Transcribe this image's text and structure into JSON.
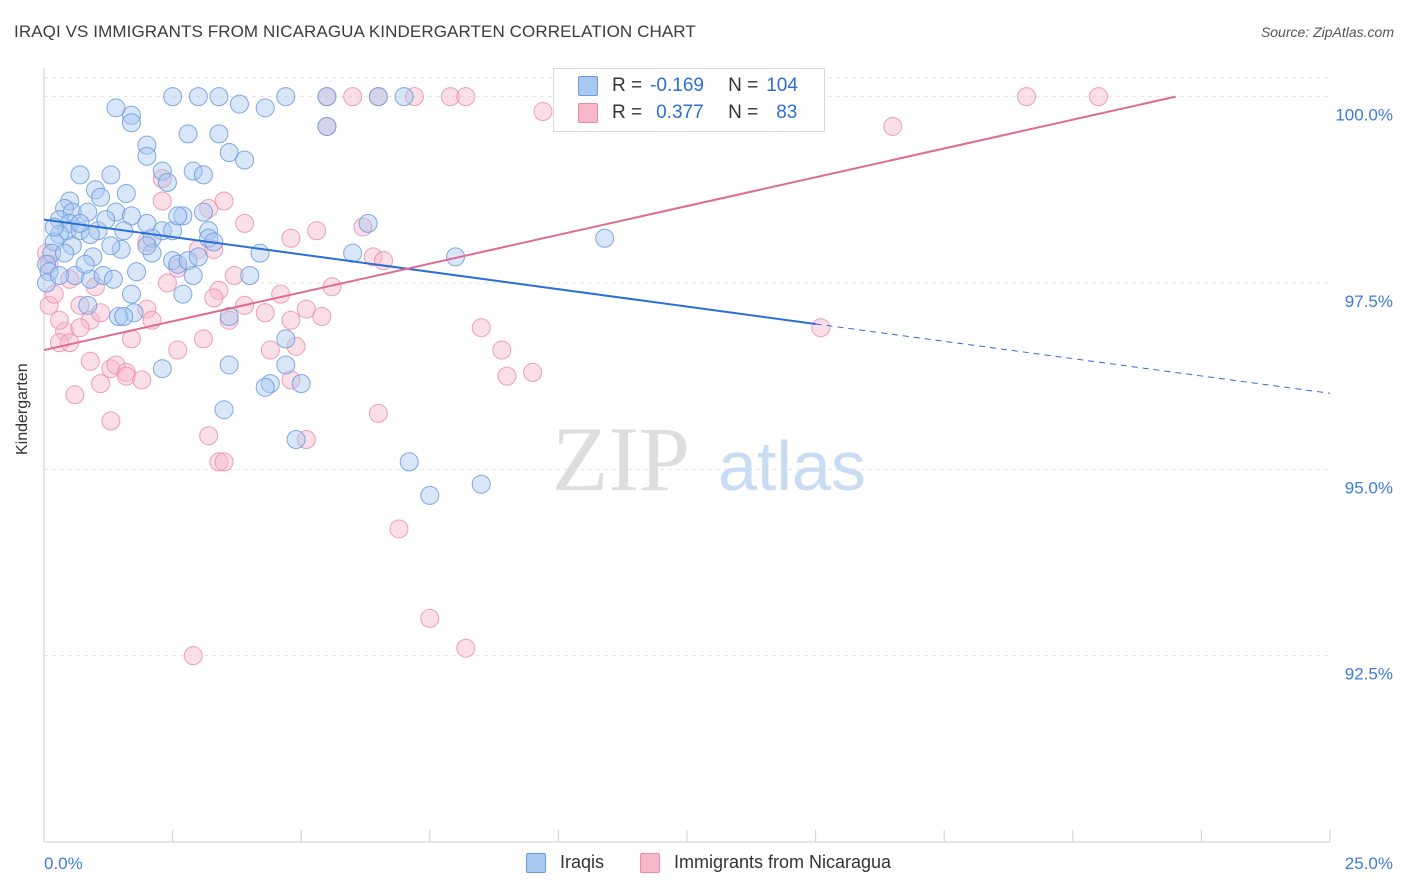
{
  "header": {
    "title": "IRAQI VS IMMIGRANTS FROM NICARAGUA KINDERGARTEN CORRELATION CHART",
    "source": "Source: ZipAtlas.com"
  },
  "legend": {
    "rows": [
      {
        "r_label": "R =",
        "r_value": "-0.169",
        "n_label": "N =",
        "n_value": "104"
      },
      {
        "r_label": "R =",
        "r_value": "0.377",
        "n_label": "N =",
        "n_value": "83"
      }
    ]
  },
  "bottom_legend": {
    "items": [
      {
        "label": "Iraqis"
      },
      {
        "label": "Immigrants from Nicaragua"
      }
    ]
  },
  "watermark": {
    "zip": "ZIP",
    "atlas": "atlas"
  },
  "colors": {
    "blue_fill": "#a9c8f0",
    "blue_stroke": "#6a9be0",
    "blue_line": "#2b6fd6",
    "pink_fill": "#f7b8cc",
    "pink_stroke": "#e98aa8",
    "pink_line": "#e06a94",
    "axis_text": "#3d7ad9",
    "grid": "#e4e4e4"
  },
  "chart_data": {
    "type": "scatter",
    "title": "IRAQI VS IMMIGRANTS FROM NICARAGUA KINDERGARTEN CORRELATION CHART",
    "xlabel": "",
    "ylabel": "Kindergarten",
    "xlim": [
      0,
      25
    ],
    "ylim": [
      90,
      100.25
    ],
    "x_tick_labels": [
      "0.0%",
      "25.0%"
    ],
    "y_ticks": [
      92.5,
      95.0,
      97.5,
      100.0
    ],
    "y_tick_labels": [
      "92.5%",
      "95.0%",
      "97.5%",
      "100.0%"
    ],
    "grid": true,
    "legend_position": "top-center",
    "series": [
      {
        "name": "Iraqis",
        "color": "#a9c8f0",
        "trend": {
          "x": [
            0.0,
            15.0
          ],
          "y": [
            98.35,
            96.95
          ],
          "dashed_to": [
            25.0,
            96.02
          ]
        },
        "points": [
          [
            2.5,
            100.0
          ],
          [
            3.0,
            100.0
          ],
          [
            3.4,
            100.0
          ],
          [
            3.8,
            99.9
          ],
          [
            4.3,
            99.85
          ],
          [
            4.7,
            100.0
          ],
          [
            5.5,
            100.0
          ],
          [
            5.5,
            99.6
          ],
          [
            6.5,
            100.0
          ],
          [
            7.0,
            100.0
          ],
          [
            1.4,
            99.85
          ],
          [
            1.7,
            99.75
          ],
          [
            1.7,
            99.65
          ],
          [
            2.0,
            99.35
          ],
          [
            2.8,
            99.5
          ],
          [
            3.4,
            99.5
          ],
          [
            2.0,
            99.2
          ],
          [
            3.6,
            99.25
          ],
          [
            3.9,
            99.15
          ],
          [
            2.3,
            99.0
          ],
          [
            2.4,
            98.85
          ],
          [
            2.9,
            99.0
          ],
          [
            3.1,
            98.95
          ],
          [
            0.7,
            98.95
          ],
          [
            1.3,
            98.95
          ],
          [
            1.0,
            98.75
          ],
          [
            1.6,
            98.7
          ],
          [
            1.1,
            98.65
          ],
          [
            0.5,
            98.6
          ],
          [
            0.4,
            98.5
          ],
          [
            0.55,
            98.45
          ],
          [
            0.85,
            98.45
          ],
          [
            1.4,
            98.45
          ],
          [
            1.7,
            98.4
          ],
          [
            2.7,
            98.4
          ],
          [
            3.1,
            98.45
          ],
          [
            0.3,
            98.35
          ],
          [
            0.5,
            98.3
          ],
          [
            2.0,
            98.3
          ],
          [
            2.3,
            98.2
          ],
          [
            0.45,
            98.2
          ],
          [
            0.7,
            98.2
          ],
          [
            1.05,
            98.2
          ],
          [
            1.55,
            98.2
          ],
          [
            2.5,
            98.2
          ],
          [
            3.2,
            98.2
          ],
          [
            0.3,
            98.15
          ],
          [
            0.9,
            98.15
          ],
          [
            2.1,
            98.1
          ],
          [
            3.2,
            98.1
          ],
          [
            0.2,
            98.05
          ],
          [
            0.55,
            98.0
          ],
          [
            1.5,
            97.95
          ],
          [
            2.1,
            97.9
          ],
          [
            0.15,
            97.9
          ],
          [
            0.95,
            97.85
          ],
          [
            2.5,
            97.8
          ],
          [
            2.6,
            97.75
          ],
          [
            2.8,
            97.8
          ],
          [
            0.05,
            97.75
          ],
          [
            0.1,
            97.65
          ],
          [
            0.6,
            97.6
          ],
          [
            0.9,
            97.55
          ],
          [
            1.15,
            97.6
          ],
          [
            1.35,
            97.55
          ],
          [
            3.0,
            97.85
          ],
          [
            4.0,
            97.6
          ],
          [
            0.05,
            97.5
          ],
          [
            1.7,
            97.35
          ],
          [
            2.7,
            97.35
          ],
          [
            0.85,
            97.2
          ],
          [
            1.75,
            97.1
          ],
          [
            1.45,
            97.05
          ],
          [
            1.55,
            97.05
          ],
          [
            3.6,
            97.05
          ],
          [
            4.7,
            96.75
          ],
          [
            2.3,
            96.35
          ],
          [
            3.6,
            96.4
          ],
          [
            4.7,
            96.4
          ],
          [
            4.4,
            96.15
          ],
          [
            4.3,
            96.1
          ],
          [
            5.0,
            96.15
          ],
          [
            3.5,
            95.8
          ],
          [
            4.9,
            95.4
          ],
          [
            7.1,
            95.1
          ],
          [
            7.5,
            94.65
          ],
          [
            8.5,
            94.8
          ],
          [
            6.0,
            97.9
          ],
          [
            6.3,
            98.3
          ],
          [
            8.0,
            97.85
          ],
          [
            10.9,
            98.1
          ],
          [
            0.3,
            97.6
          ],
          [
            0.7,
            98.3
          ],
          [
            1.3,
            98.0
          ],
          [
            2.0,
            98.0
          ],
          [
            2.6,
            98.4
          ],
          [
            0.2,
            98.25
          ],
          [
            1.2,
            98.35
          ],
          [
            0.4,
            97.9
          ],
          [
            0.8,
            97.75
          ],
          [
            1.8,
            97.65
          ],
          [
            2.9,
            97.6
          ],
          [
            3.3,
            98.05
          ],
          [
            4.2,
            97.9
          ]
        ]
      },
      {
        "name": "Immigrants from Nicaragua",
        "color": "#f7b8cc",
        "trend": {
          "x": [
            0.0,
            22.0
          ],
          "y": [
            96.6,
            100.0
          ]
        },
        "points": [
          [
            5.5,
            100.0
          ],
          [
            6.0,
            100.0
          ],
          [
            6.5,
            100.0
          ],
          [
            7.2,
            100.0
          ],
          [
            7.9,
            100.0
          ],
          [
            8.2,
            100.0
          ],
          [
            10.5,
            100.0
          ],
          [
            19.1,
            100.0
          ],
          [
            20.5,
            100.0
          ],
          [
            9.7,
            99.8
          ],
          [
            5.5,
            99.6
          ],
          [
            16.5,
            99.6
          ],
          [
            2.3,
            98.9
          ],
          [
            3.5,
            98.6
          ],
          [
            2.3,
            98.6
          ],
          [
            3.2,
            98.5
          ],
          [
            6.2,
            98.25
          ],
          [
            3.9,
            98.3
          ],
          [
            5.3,
            98.2
          ],
          [
            4.8,
            98.1
          ],
          [
            2.0,
            98.05
          ],
          [
            3.0,
            97.95
          ],
          [
            3.3,
            97.95
          ],
          [
            0.05,
            97.9
          ],
          [
            0.1,
            97.75
          ],
          [
            6.4,
            97.85
          ],
          [
            3.7,
            97.6
          ],
          [
            2.4,
            97.5
          ],
          [
            3.4,
            97.4
          ],
          [
            3.3,
            97.3
          ],
          [
            0.7,
            97.2
          ],
          [
            2.0,
            97.15
          ],
          [
            5.1,
            97.15
          ],
          [
            4.3,
            97.1
          ],
          [
            5.4,
            97.05
          ],
          [
            0.1,
            97.2
          ],
          [
            0.9,
            97.0
          ],
          [
            1.1,
            97.1
          ],
          [
            2.1,
            97.0
          ],
          [
            4.8,
            97.0
          ],
          [
            3.6,
            97.0
          ],
          [
            0.4,
            96.85
          ],
          [
            0.7,
            96.9
          ],
          [
            3.1,
            96.75
          ],
          [
            4.4,
            96.6
          ],
          [
            4.9,
            96.65
          ],
          [
            0.3,
            96.7
          ],
          [
            0.5,
            96.7
          ],
          [
            2.6,
            96.6
          ],
          [
            8.5,
            96.9
          ],
          [
            8.9,
            96.6
          ],
          [
            15.1,
            96.9
          ],
          [
            0.9,
            96.45
          ],
          [
            1.3,
            96.35
          ],
          [
            1.4,
            96.4
          ],
          [
            1.6,
            96.3
          ],
          [
            1.1,
            96.15
          ],
          [
            1.6,
            96.25
          ],
          [
            1.9,
            96.2
          ],
          [
            4.8,
            96.2
          ],
          [
            9.0,
            96.25
          ],
          [
            9.5,
            96.3
          ],
          [
            0.6,
            96.0
          ],
          [
            1.3,
            95.65
          ],
          [
            6.5,
            95.75
          ],
          [
            3.2,
            95.45
          ],
          [
            5.1,
            95.4
          ],
          [
            3.4,
            95.1
          ],
          [
            3.5,
            95.1
          ],
          [
            6.9,
            94.2
          ],
          [
            7.5,
            93.0
          ],
          [
            8.2,
            92.6
          ],
          [
            2.9,
            92.5
          ],
          [
            0.2,
            97.35
          ],
          [
            0.5,
            97.55
          ],
          [
            1.0,
            97.45
          ],
          [
            2.6,
            97.7
          ],
          [
            3.9,
            97.2
          ],
          [
            4.6,
            97.35
          ],
          [
            5.6,
            97.45
          ],
          [
            6.6,
            97.8
          ],
          [
            0.3,
            97.0
          ],
          [
            1.7,
            96.75
          ]
        ]
      }
    ]
  }
}
